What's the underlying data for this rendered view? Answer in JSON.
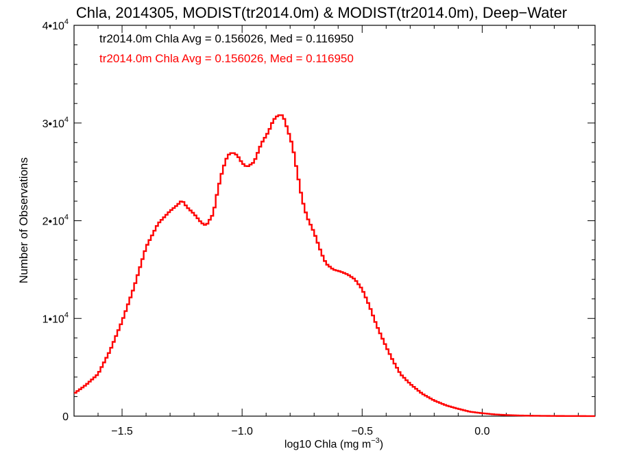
{
  "chart_data": {
    "type": "line",
    "title": "Chla, 2014305, MODIST(tr2014.0m) & MODIST(tr2014.0m), Deep−Water",
    "xlabel_main": "log10 Chla (mg m",
    "xlabel_sup": "−3",
    "xlabel_end": ")",
    "ylabel": "Number of Observations",
    "xlim": [
      -1.7,
      0.47
    ],
    "ylim": [
      0,
      40000
    ],
    "x_ticks": [
      {
        "value": -1.5,
        "label": "−1.5"
      },
      {
        "value": -1.0,
        "label": "−1.0"
      },
      {
        "value": -0.5,
        "label": "−0.5"
      },
      {
        "value": 0.0,
        "label": "0.0"
      }
    ],
    "y_ticks": [
      {
        "value": 0,
        "base": "0",
        "exp": ""
      },
      {
        "value": 10000,
        "base": "1•10",
        "exp": "4"
      },
      {
        "value": 20000,
        "base": "2•10",
        "exp": "4"
      },
      {
        "value": 30000,
        "base": "3•10",
        "exp": "4"
      },
      {
        "value": 40000,
        "base": "4•10",
        "exp": "4"
      }
    ],
    "annotations": [
      {
        "text": "tr2014.0m Chla Avg = 0.156026, Med = 0.116950",
        "color": "#000000"
      },
      {
        "text": "tr2014.0m Chla Avg = 0.156026, Med = 0.116950",
        "color": "#ff0000"
      }
    ],
    "series": [
      {
        "color": "#ff0000",
        "style": "step",
        "points": [
          [
            -1.7,
            2300
          ],
          [
            -1.65,
            3200
          ],
          [
            -1.6,
            4300
          ],
          [
            -1.55,
            6700
          ],
          [
            -1.5,
            9700
          ],
          [
            -1.45,
            13200
          ],
          [
            -1.4,
            17300
          ],
          [
            -1.35,
            19700
          ],
          [
            -1.3,
            21000
          ],
          [
            -1.27,
            21600
          ],
          [
            -1.25,
            22100
          ],
          [
            -1.23,
            21400
          ],
          [
            -1.2,
            20700
          ],
          [
            -1.17,
            19800
          ],
          [
            -1.15,
            19500
          ],
          [
            -1.12,
            20700
          ],
          [
            -1.1,
            23300
          ],
          [
            -1.08,
            25300
          ],
          [
            -1.06,
            26700
          ],
          [
            -1.04,
            27000
          ],
          [
            -1.02,
            26700
          ],
          [
            -1.0,
            25900
          ],
          [
            -0.98,
            25500
          ],
          [
            -0.95,
            26000
          ],
          [
            -0.92,
            27900
          ],
          [
            -0.89,
            29100
          ],
          [
            -0.87,
            30300
          ],
          [
            -0.85,
            30800
          ],
          [
            -0.83,
            30800
          ],
          [
            -0.81,
            29300
          ],
          [
            -0.79,
            27700
          ],
          [
            -0.77,
            24900
          ],
          [
            -0.75,
            22200
          ],
          [
            -0.73,
            20400
          ],
          [
            -0.7,
            18800
          ],
          [
            -0.67,
            16700
          ],
          [
            -0.65,
            15600
          ],
          [
            -0.62,
            15000
          ],
          [
            -0.59,
            14800
          ],
          [
            -0.56,
            14500
          ],
          [
            -0.53,
            14000
          ],
          [
            -0.5,
            13000
          ],
          [
            -0.47,
            11300
          ],
          [
            -0.44,
            9300
          ],
          [
            -0.4,
            7100
          ],
          [
            -0.37,
            5600
          ],
          [
            -0.34,
            4300
          ],
          [
            -0.3,
            3300
          ],
          [
            -0.25,
            2300
          ],
          [
            -0.2,
            1600
          ],
          [
            -0.15,
            1100
          ],
          [
            -0.1,
            750
          ],
          [
            -0.05,
            450
          ],
          [
            0.0,
            300
          ],
          [
            0.05,
            180
          ],
          [
            0.1,
            110
          ],
          [
            0.15,
            70
          ],
          [
            0.2,
            45
          ],
          [
            0.3,
            20
          ],
          [
            0.4,
            10
          ],
          [
            0.47,
            5
          ]
        ]
      }
    ]
  }
}
